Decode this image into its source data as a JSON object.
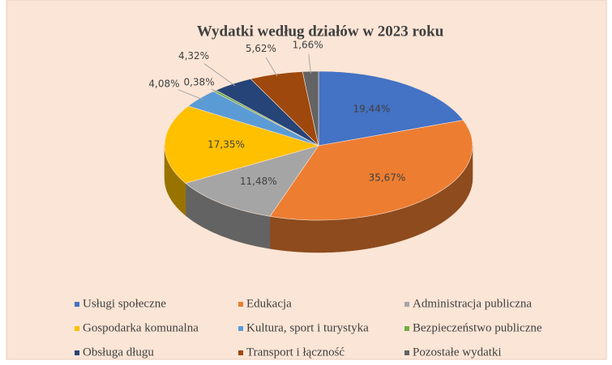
{
  "chart_data": {
    "type": "pie3d",
    "title": "Wydatki według działów w 2023 roku",
    "categories": [
      "Usługi społeczne",
      "Edukacja",
      "Administracja publiczna",
      "Gospodarka komunalna",
      "Kultura, sport i turystyka",
      "Bezpieczeństwo publiczne",
      "Obsługa długu",
      "Transport i łączność",
      "Pozostałe wydatki"
    ],
    "values": [
      19.44,
      35.67,
      11.48,
      17.35,
      4.08,
      0.38,
      4.32,
      5.62,
      1.66
    ],
    "value_labels": [
      "19,44%",
      "35,67%",
      "11,48%",
      "17,35%",
      "4,08%",
      "0,38%",
      "4,32%",
      "5,62%",
      "1,66%"
    ],
    "colors": [
      "#4472c4",
      "#ed7d31",
      "#a5a5a5",
      "#ffc000",
      "#5b9bd5",
      "#70ad47",
      "#264478",
      "#9e480e",
      "#636363"
    ],
    "legend": "bottom"
  }
}
